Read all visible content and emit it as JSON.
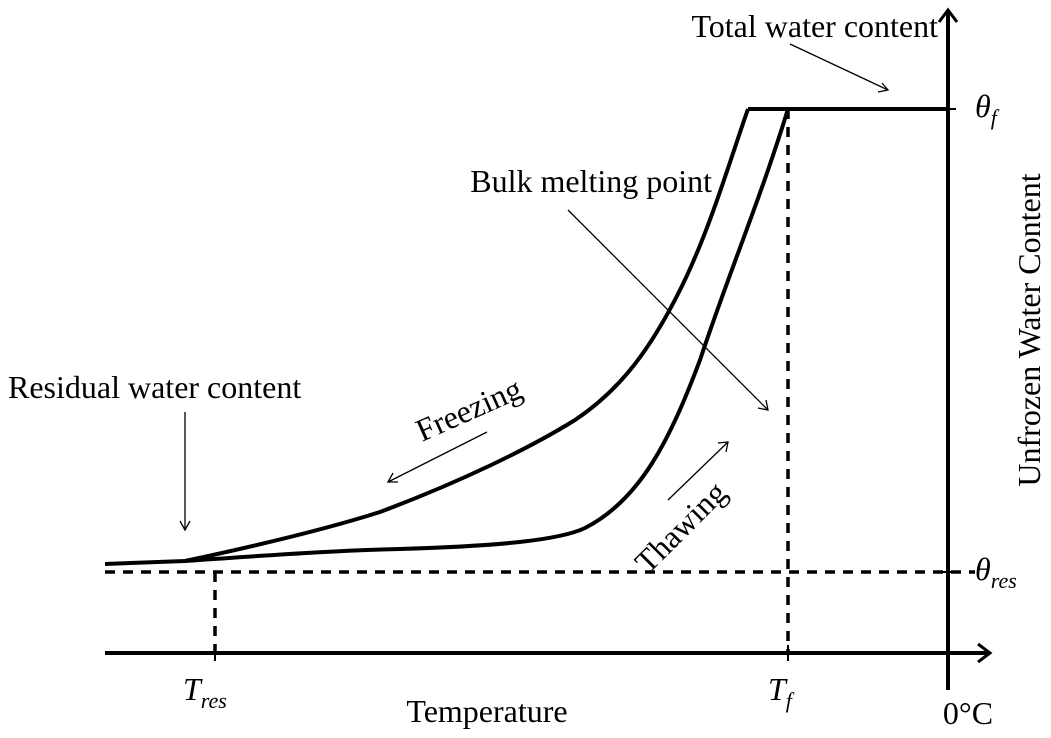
{
  "labels": {
    "total_water_content": "Total water content",
    "bulk_melting_point": "Bulk melting point",
    "residual_water_content": "Residual water content",
    "freezing": "Freezing",
    "thawing": "Thawing",
    "y_axis": "Unfrozen Water Content",
    "x_axis": "Temperature",
    "zero": "0°C"
  },
  "symbols": {
    "theta_f": {
      "base": "θ",
      "sub": "f"
    },
    "theta_res": {
      "base": "θ",
      "sub": "res"
    },
    "t_res": {
      "base": "T",
      "sub": "res"
    },
    "t_f": {
      "base": "T",
      "sub": "f"
    }
  }
}
